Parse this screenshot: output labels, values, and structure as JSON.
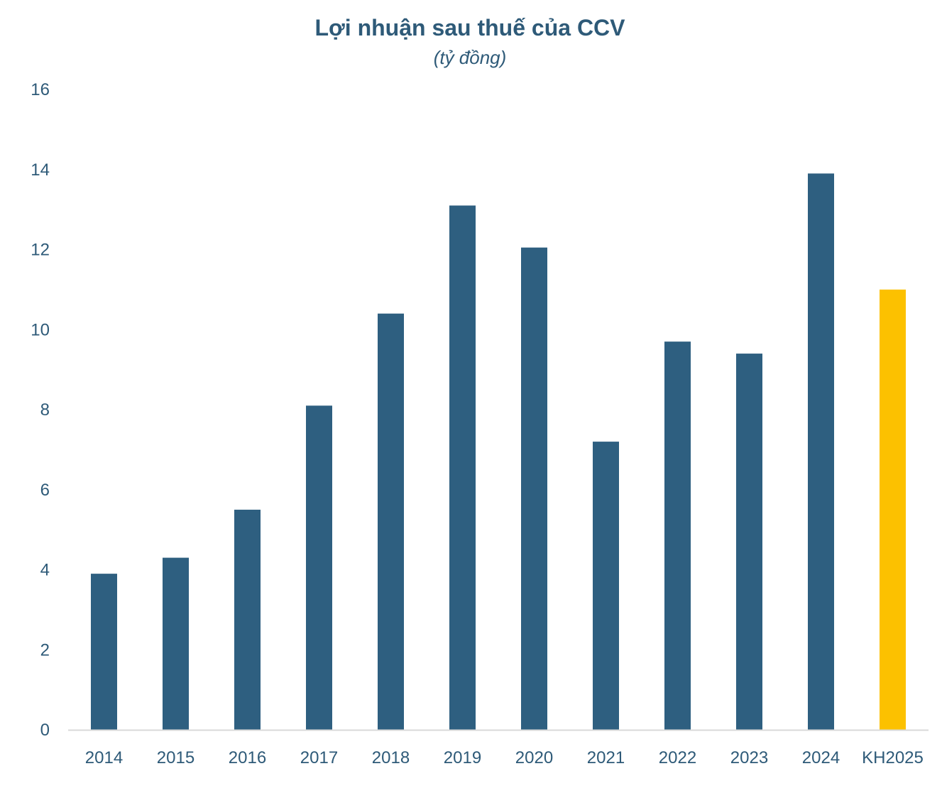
{
  "chart_data": {
    "type": "bar",
    "title": "Lợi nhuận sau thuế của CCV",
    "subtitle": "(tỷ đồng)",
    "xlabel": "",
    "ylabel": "",
    "categories": [
      "2014",
      "2015",
      "2016",
      "2017",
      "2018",
      "2019",
      "2020",
      "2021",
      "2022",
      "2023",
      "2024",
      "KH2025"
    ],
    "values": [
      3.9,
      4.3,
      5.5,
      8.1,
      10.4,
      13.1,
      12.05,
      7.2,
      9.7,
      9.4,
      13.9,
      11.0
    ],
    "ylim": [
      0,
      16
    ],
    "yticks": [
      0,
      2,
      4,
      6,
      8,
      10,
      12,
      14,
      16
    ],
    "grid": false,
    "legend": "none",
    "colors": {
      "default": "#2e5f80",
      "highlight": "#fcc100",
      "text": "#2e5a78",
      "axis": "#d9d9d9"
    },
    "highlight_categories": [
      "KH2025"
    ]
  }
}
